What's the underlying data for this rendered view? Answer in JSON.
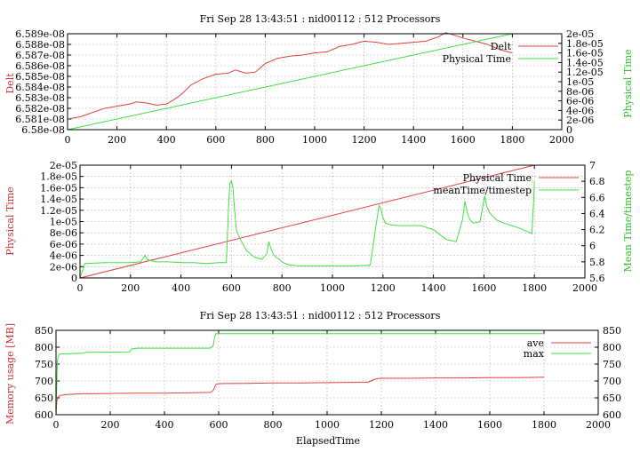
{
  "chart_data": [
    {
      "type": "line",
      "title": "Fri Sep 28 13:43:51 : nid00112 : 512 Processors",
      "xlabel": "",
      "ylabel": "Delt",
      "y2label": "Physical Time",
      "xlim": [
        0,
        2000
      ],
      "ylim": [
        6.58e-08,
        6.589e-08
      ],
      "y2lim": [
        0,
        2e-05
      ],
      "xticks": [
        "0",
        "200",
        "400",
        "600",
        "800",
        "1000",
        "1200",
        "1400",
        "1600",
        "1800",
        "2000"
      ],
      "yticks": [
        "6.58e-08",
        "6.581e-08",
        "6.582e-08",
        "6.583e-08",
        "6.584e-08",
        "6.585e-08",
        "6.586e-08",
        "6.587e-08",
        "6.588e-08",
        "6.589e-08"
      ],
      "y2ticks": [
        "0",
        "2e-06",
        "4e-06",
        "6e-06",
        "8e-06",
        "1e-05",
        "1.2e-05",
        "1.4e-05",
        "1.6e-05",
        "1.8e-05",
        "2e-05"
      ],
      "grid": true,
      "legend_position": "top-right",
      "series": [
        {
          "name": "Delt",
          "color": "#e04040",
          "axis": "y",
          "x": [
            0,
            50,
            100,
            150,
            200,
            250,
            280,
            320,
            360,
            400,
            430,
            460,
            500,
            550,
            600,
            650,
            680,
            720,
            760,
            800,
            850,
            900,
            950,
            1000,
            1050,
            1100,
            1150,
            1200,
            1250,
            1300,
            1350,
            1400,
            1450,
            1500,
            1530,
            1560,
            1600,
            1650,
            1700,
            1750,
            1800
          ],
          "y": [
            6.581e-08,
            6.5812e-08,
            6.5816e-08,
            6.582e-08,
            6.5822e-08,
            6.5824e-08,
            6.5826e-08,
            6.5825e-08,
            6.5823e-08,
            6.5824e-08,
            6.5828e-08,
            6.5833e-08,
            6.5842e-08,
            6.5848e-08,
            6.5852e-08,
            6.5853e-08,
            6.5856e-08,
            6.5853e-08,
            6.5854e-08,
            6.5862e-08,
            6.5867e-08,
            6.5869e-08,
            6.587e-08,
            6.5872e-08,
            6.5873e-08,
            6.5878e-08,
            6.588e-08,
            6.5883e-08,
            6.5882e-08,
            6.588e-08,
            6.5881e-08,
            6.5882e-08,
            6.5883e-08,
            6.5887e-08,
            6.5891e-08,
            6.5889e-08,
            6.5886e-08,
            6.5883e-08,
            6.588e-08,
            6.5875e-08,
            6.5872e-08
          ]
        },
        {
          "name": "Physical Time",
          "color": "#40e040",
          "axis": "y2",
          "x": [
            0,
            1800
          ],
          "y": [
            0,
            2e-05
          ]
        }
      ]
    },
    {
      "type": "line",
      "title": "",
      "xlabel": "",
      "ylabel": "Physical Time",
      "y2label": "Mean Time/timestep",
      "xlim": [
        0,
        2000
      ],
      "ylim": [
        0,
        2e-05
      ],
      "y2lim": [
        5.6,
        7
      ],
      "xticks": [
        "0",
        "200",
        "400",
        "600",
        "800",
        "1000",
        "1200",
        "1400",
        "1600",
        "1800",
        "2000"
      ],
      "yticks": [
        "0",
        "2e-06",
        "4e-06",
        "6e-06",
        "8e-06",
        "1e-05",
        "1.2e-05",
        "1.4e-05",
        "1.6e-05",
        "1.8e-05",
        "2e-05"
      ],
      "y2ticks": [
        "5.6",
        "5.8",
        "6",
        "6.2",
        "6.4",
        "6.6",
        "6.8",
        "7"
      ],
      "grid": true,
      "legend_position": "top-right",
      "series": [
        {
          "name": "Physical Time",
          "color": "#e04040",
          "axis": "y",
          "x": [
            0,
            1800
          ],
          "y": [
            0,
            2e-05
          ]
        },
        {
          "name": "meanTime/timestep",
          "color": "#40e040",
          "axis": "y2",
          "x": [
            0,
            20,
            100,
            150,
            200,
            240,
            258,
            265,
            275,
            300,
            350,
            400,
            450,
            500,
            550,
            580,
            588,
            594,
            600,
            606,
            612,
            620,
            640,
            660,
            690,
            720,
            740,
            748,
            756,
            765,
            775,
            790,
            805,
            830,
            870,
            950,
            1050,
            1100,
            1150,
            1170,
            1185,
            1192,
            1200,
            1210,
            1230,
            1260,
            1300,
            1350,
            1400,
            1450,
            1490,
            1515,
            1525,
            1535,
            1545,
            1560,
            1585,
            1595,
            1603,
            1612,
            1625,
            1650,
            1680,
            1710,
            1740,
            1770,
            1790,
            1796,
            1800
          ],
          "y": [
            5.6,
            5.78,
            5.79,
            5.79,
            5.79,
            5.8,
            5.88,
            5.83,
            5.82,
            5.8,
            5.8,
            5.79,
            5.79,
            5.78,
            5.79,
            5.79,
            6.45,
            6.78,
            6.8,
            6.72,
            6.46,
            6.18,
            6.05,
            5.94,
            5.86,
            5.83,
            5.9,
            6.05,
            5.97,
            5.9,
            5.86,
            5.83,
            5.79,
            5.76,
            5.75,
            5.75,
            5.75,
            5.75,
            5.76,
            6.2,
            6.5,
            6.46,
            6.35,
            6.28,
            6.26,
            6.25,
            6.25,
            6.25,
            6.2,
            6.08,
            6.05,
            6.32,
            6.55,
            6.4,
            6.32,
            6.28,
            6.3,
            6.48,
            6.62,
            6.48,
            6.4,
            6.32,
            6.28,
            6.25,
            6.22,
            6.18,
            6.15,
            6.5,
            6.8
          ]
        }
      ]
    },
    {
      "type": "line",
      "title": "Fri Sep 28 13:43:51 : nid00112 : 512 Processors",
      "xlabel": "ElapsedTime",
      "ylabel": "Memory usage [MB]",
      "y2label": "",
      "xlim": [
        0,
        2000
      ],
      "ylim": [
        600,
        850
      ],
      "y2lim": [
        600,
        850
      ],
      "xticks": [
        "0",
        "200",
        "400",
        "600",
        "800",
        "1000",
        "1200",
        "1400",
        "1600",
        "1800",
        "2000"
      ],
      "yticks": [
        "600",
        "650",
        "700",
        "750",
        "800",
        "850"
      ],
      "y2ticks": [
        "600",
        "650",
        "700",
        "750",
        "800",
        "850"
      ],
      "grid": true,
      "legend_position": "top-right",
      "series": [
        {
          "name": "ave",
          "color": "#e04040",
          "axis": "y",
          "x": [
            0,
            3,
            8,
            15,
            40,
            100,
            200,
            300,
            400,
            500,
            570,
            580,
            590,
            600,
            700,
            800,
            900,
            1000,
            1150,
            1170,
            1180,
            1190,
            1200,
            1300,
            1400,
            1500,
            1600,
            1700,
            1800
          ],
          "y": [
            600,
            640,
            652,
            657,
            660,
            662,
            663,
            664,
            664,
            665,
            666,
            672,
            690,
            692,
            693,
            694,
            694,
            695,
            696,
            703,
            706,
            707,
            708,
            708,
            709,
            709,
            710,
            710,
            711
          ]
        },
        {
          "name": "max",
          "color": "#40e040",
          "axis": "y",
          "x": [
            0,
            5,
            10,
            15,
            100,
            110,
            270,
            280,
            300,
            400,
            500,
            570,
            580,
            585,
            590,
            600,
            1000,
            1400,
            1800
          ],
          "y": [
            600,
            760,
            775,
            780,
            782,
            785,
            786,
            795,
            797,
            797,
            797,
            797,
            805,
            830,
            840,
            840,
            840,
            840,
            840
          ]
        }
      ]
    }
  ]
}
